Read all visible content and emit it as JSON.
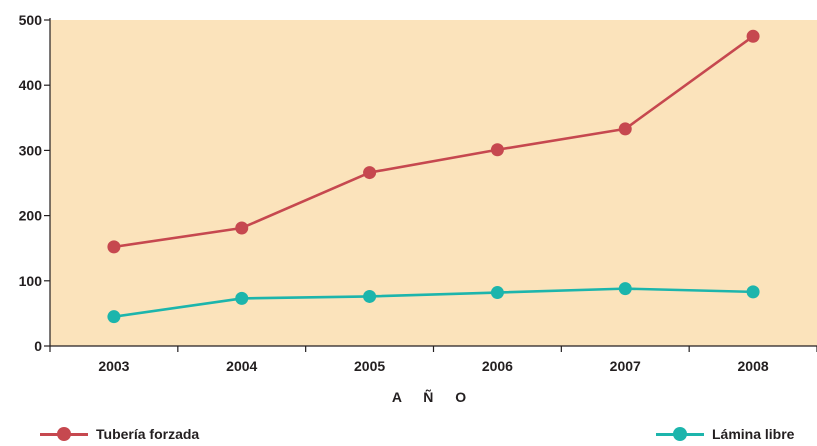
{
  "chart_data": {
    "type": "line",
    "title": "",
    "xlabel": "A Ñ O",
    "ylabel": "",
    "categories": [
      "2003",
      "2004",
      "2005",
      "2006",
      "2007",
      "2008"
    ],
    "ylim": [
      0,
      500
    ],
    "yticks": [
      0,
      100,
      200,
      300,
      400,
      500
    ],
    "grid": false,
    "legend_placement": "bottom",
    "plot_background": "#fbe3bb",
    "series": [
      {
        "name": "Tubería forzada",
        "color": "#c6484f",
        "values": [
          152,
          181,
          266,
          301,
          333,
          475
        ]
      },
      {
        "name": "Lámina libre",
        "color": "#1cb5ac",
        "values": [
          45,
          73,
          76,
          82,
          88,
          83
        ]
      }
    ]
  }
}
